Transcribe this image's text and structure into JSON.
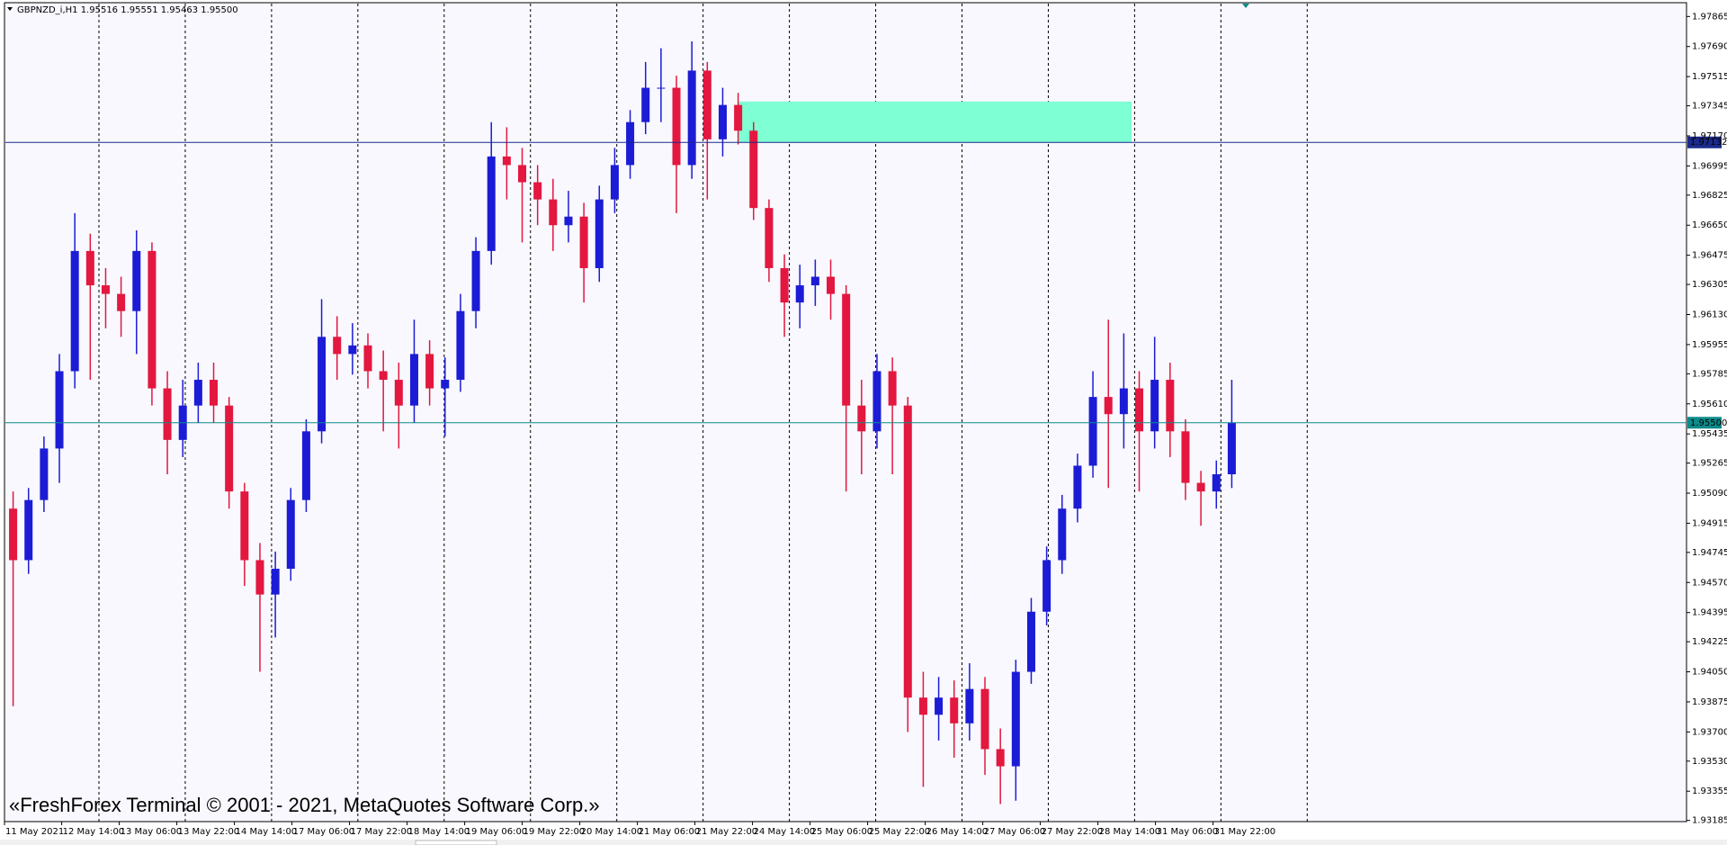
{
  "chart_data": {
    "type": "candlestick",
    "header": "GBPNZD_i,H1  1.95516 1.95551 1.95463 1.95500",
    "watermark": "«FreshForex Terminal © 2001 - 2021, MetaQuotes Software Corp.»",
    "x_labels": [
      "11 May 2021",
      "12 May 14:00",
      "13 May 06:00",
      "13 May 22:00",
      "14 May 14:00",
      "17 May 06:00",
      "17 May 22:00",
      "18 May 14:00",
      "19 May 06:00",
      "19 May 22:00",
      "20 May 14:00",
      "21 May 06:00",
      "21 May 22:00",
      "24 May 14:00",
      "25 May 06:00",
      "25 May 22:00",
      "26 May 14:00",
      "27 May 06:00",
      "27 May 22:00",
      "28 May 14:00",
      "31 May 06:00",
      "31 May 22:00"
    ],
    "up_color": "#1c1cd6",
    "down_color": "#e3173f",
    "open": [
      1.95,
      1.947,
      1.9505,
      1.9535,
      1.958,
      1.965,
      1.963,
      1.9625,
      1.9615,
      1.965,
      1.957,
      1.954,
      1.956,
      1.9575,
      1.956,
      1.951,
      1.947,
      1.945,
      1.9465,
      1.9505,
      1.9545,
      1.96,
      1.959,
      1.9595,
      1.958,
      1.9575,
      1.956,
      1.959,
      1.957,
      1.9575,
      1.9615,
      1.965,
      1.9705,
      1.97,
      1.969,
      1.968,
      1.9665,
      1.967,
      1.964,
      1.968,
      1.97,
      1.9725,
      1.9745,
      1.9745,
      1.97,
      1.9755,
      1.9715,
      1.9735,
      1.972,
      1.9675,
      1.964,
      1.962,
      1.963,
      1.9635,
      1.9625,
      1.956,
      1.9545,
      1.958,
      1.956,
      1.939,
      1.938,
      1.939,
      1.9375,
      1.9395,
      1.936,
      1.935,
      1.9405,
      1.944,
      1.947,
      1.95,
      1.9525,
      1.9565,
      1.9555,
      1.957,
      1.9545,
      1.9575,
      1.9545,
      1.9515,
      1.951,
      1.952
    ],
    "high": [
      1.951,
      1.9512,
      1.9542,
      1.959,
      1.9672,
      1.966,
      1.964,
      1.9635,
      1.9662,
      1.9655,
      1.958,
      1.9575,
      1.9585,
      1.9585,
      1.9565,
      1.9515,
      1.948,
      1.9475,
      1.9512,
      1.9552,
      1.9622,
      1.9612,
      1.9608,
      1.9602,
      1.9592,
      1.9585,
      1.961,
      1.9598,
      1.9588,
      1.9625,
      1.9658,
      1.9725,
      1.9722,
      1.971,
      1.97,
      1.9692,
      1.9685,
      1.9678,
      1.9688,
      1.971,
      1.9732,
      1.976,
      1.9768,
      1.9752,
      1.9772,
      1.976,
      1.9745,
      1.9742,
      1.9725,
      1.968,
      1.9648,
      1.9642,
      1.9645,
      1.9645,
      1.963,
      1.9575,
      1.959,
      1.9588,
      1.9565,
      1.9405,
      1.9402,
      1.94,
      1.941,
      1.9402,
      1.9372,
      1.9412,
      1.9448,
      1.9478,
      1.9508,
      1.9532,
      1.958,
      1.961,
      1.9602,
      1.958,
      1.96,
      1.9585,
      1.9552,
      1.9522,
      1.9528,
      1.9575
    ],
    "low": [
      1.9385,
      1.9462,
      1.9498,
      1.9515,
      1.957,
      1.9575,
      1.9605,
      1.96,
      1.959,
      1.956,
      1.952,
      1.953,
      1.955,
      1.955,
      1.95,
      1.9455,
      1.9405,
      1.9425,
      1.9458,
      1.9498,
      1.9538,
      1.9575,
      1.9578,
      1.957,
      1.9545,
      1.9535,
      1.955,
      1.956,
      1.9542,
      1.9568,
      1.9605,
      1.9642,
      1.968,
      1.9655,
      1.9665,
      1.965,
      1.9655,
      1.962,
      1.9632,
      1.9672,
      1.9692,
      1.9718,
      1.9725,
      1.9672,
      1.9692,
      1.968,
      1.9705,
      1.9712,
      1.9668,
      1.9632,
      1.96,
      1.9605,
      1.9618,
      1.961,
      1.951,
      1.952,
      1.9535,
      1.952,
      1.937,
      1.9338,
      1.9365,
      1.9355,
      1.9365,
      1.9345,
      1.9328,
      1.933,
      1.9398,
      1.9432,
      1.9462,
      1.9492,
      1.9518,
      1.9512,
      1.9535,
      1.951,
      1.9535,
      1.953,
      1.9505,
      1.949,
      1.95,
      1.9512
    ],
    "close": [
      1.947,
      1.9505,
      1.9535,
      1.958,
      1.965,
      1.963,
      1.9625,
      1.9615,
      1.965,
      1.957,
      1.954,
      1.956,
      1.9575,
      1.956,
      1.951,
      1.947,
      1.945,
      1.9465,
      1.9505,
      1.9545,
      1.96,
      1.959,
      1.9595,
      1.958,
      1.9575,
      1.956,
      1.959,
      1.957,
      1.9575,
      1.9615,
      1.965,
      1.9705,
      1.97,
      1.969,
      1.968,
      1.9665,
      1.967,
      1.964,
      1.968,
      1.97,
      1.9725,
      1.9745,
      1.9745,
      1.97,
      1.9755,
      1.9715,
      1.9735,
      1.972,
      1.9675,
      1.964,
      1.962,
      1.963,
      1.9635,
      1.9625,
      1.956,
      1.9545,
      1.958,
      1.956,
      1.939,
      1.938,
      1.939,
      1.9375,
      1.9395,
      1.936,
      1.935,
      1.9405,
      1.944,
      1.947,
      1.95,
      1.9525,
      1.9565,
      1.9555,
      1.957,
      1.9545,
      1.9575,
      1.9545,
      1.9515,
      1.951,
      1.952,
      1.955
    ],
    "ylim": [
      1.93178,
      1.9794
    ],
    "yticks": [
      1.97865,
      {
        "value": 1.9769,
        "label": "1.97690"
      },
      1.97515,
      1.97345,
      {
        "value": 1.9717,
        "label": "1.97170"
      },
      1.96995,
      1.96825,
      {
        "value": 1.9665,
        "label": "1.96650"
      },
      1.96475,
      1.96305,
      {
        "value": 1.9613,
        "label": "1.96130"
      },
      1.95955,
      1.95785,
      {
        "value": 1.9561,
        "label": "1.95610"
      },
      1.95435,
      1.95265,
      {
        "value": 1.9509,
        "label": "1.95090"
      },
      1.94915,
      1.94745,
      {
        "value": 1.9457,
        "label": "1.94570"
      },
      1.94395,
      1.94225,
      {
        "value": 1.9405,
        "label": "1.94050"
      },
      1.93875,
      {
        "value": 1.937,
        "label": "1.93700"
      },
      {
        "value": 1.9353,
        "label": "1.93530"
      },
      1.93355,
      1.93185
    ],
    "hlines": [
      {
        "value": 1.97132,
        "color": "#1b2a8a"
      },
      {
        "value": 1.955,
        "label": "1.95500",
        "color": "#0d8a8a"
      }
    ],
    "zone": {
      "low": 1.9713,
      "high": 1.9737,
      "color": "#7fffd4"
    }
  }
}
